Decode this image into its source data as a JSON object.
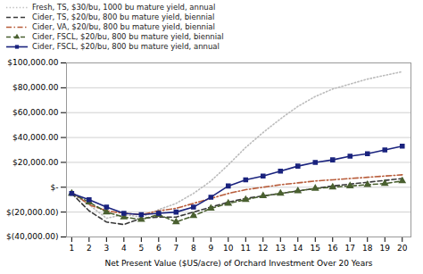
{
  "chart_data": {
    "type": "line",
    "xlabel": "Net Present Value ($US/acre) of Orchard Investment Over 20 Years",
    "x": [
      1,
      2,
      3,
      4,
      5,
      6,
      7,
      8,
      9,
      10,
      11,
      12,
      13,
      14,
      15,
      16,
      17,
      18,
      19,
      20
    ],
    "series": [
      {
        "name": "Fresh, TS, $30/bu, 1000 bu mature yield, annual",
        "color": "#bbbbbb",
        "line_style": "dotted",
        "values": [
          -5000,
          -14000,
          -25000,
          -22000,
          -24000,
          -18000,
          -13000,
          -5000,
          5000,
          18000,
          32000,
          44000,
          55000,
          65000,
          73000,
          79000,
          83000,
          87000,
          90000,
          93000
        ]
      },
      {
        "name": "Cider, TS, $20/bu, 800 bu mature yield, biennial",
        "color": "#3a3a3a",
        "line_style": "dashed",
        "values": [
          -5000,
          -19000,
          -28000,
          -30000,
          -25000,
          -24000,
          -24000,
          -20000,
          -16000,
          -12000,
          -9000,
          -7000,
          -5000,
          -3000,
          -1000,
          1000,
          2500,
          4000,
          5500,
          7000
        ]
      },
      {
        "name": "Cider, VA, $20/bu, 800 bu mature yield, biennial",
        "color": "#b85c3a",
        "line_style": "dashdot",
        "values": [
          -4000,
          -14000,
          -19000,
          -21000,
          -22000,
          -19000,
          -17000,
          -13000,
          -9000,
          -5000,
          -2000,
          0,
          2000,
          3500,
          5000,
          6000,
          7000,
          8000,
          9000,
          10000
        ]
      },
      {
        "name": "Cider, FSCL, $20/bu, 800 bu mature yield, biennial",
        "color": "#4a6030",
        "line_style": "dashed",
        "marker": "triangle",
        "values": [
          -5000,
          -12000,
          -20000,
          -24000,
          -26000,
          -22000,
          -28000,
          -23000,
          -17000,
          -13000,
          -10000,
          -7000,
          -5000,
          -3000,
          -1000,
          0,
          1000,
          2000,
          3000,
          5000
        ]
      },
      {
        "name": "Cider, FSCL, $20/bu, 800 bu mature yield, annual",
        "color": "#1a237e",
        "line_style": "solid",
        "marker": "square",
        "values": [
          -5000,
          -10000,
          -16000,
          -21000,
          -22000,
          -21000,
          -20000,
          -16000,
          -8000,
          1000,
          6000,
          9000,
          13000,
          17000,
          20000,
          22000,
          25000,
          27000,
          30000,
          33000
        ]
      }
    ],
    "xlim": [
      0.7,
      20.5
    ],
    "xticks": [
      1,
      2,
      3,
      4,
      5,
      6,
      7,
      8,
      9,
      10,
      11,
      12,
      13,
      14,
      15,
      16,
      17,
      18,
      19,
      20
    ],
    "ylim": [
      -40000,
      100000
    ],
    "yticks": [
      {
        "value": -40000,
        "label": "$(40,000.00)"
      },
      {
        "value": -20000,
        "label": "$(20,000.00)"
      },
      {
        "value": 0,
        "label": "$-"
      },
      {
        "value": 20000,
        "label": "$20,000.00"
      },
      {
        "value": 40000,
        "label": "$40,000.00"
      },
      {
        "value": 60000,
        "label": "$60,000.00"
      },
      {
        "value": 80000,
        "label": "$80,000.00"
      },
      {
        "value": 100000,
        "label": "$100,000.00"
      }
    ],
    "grid": true,
    "legend": "upper left"
  }
}
